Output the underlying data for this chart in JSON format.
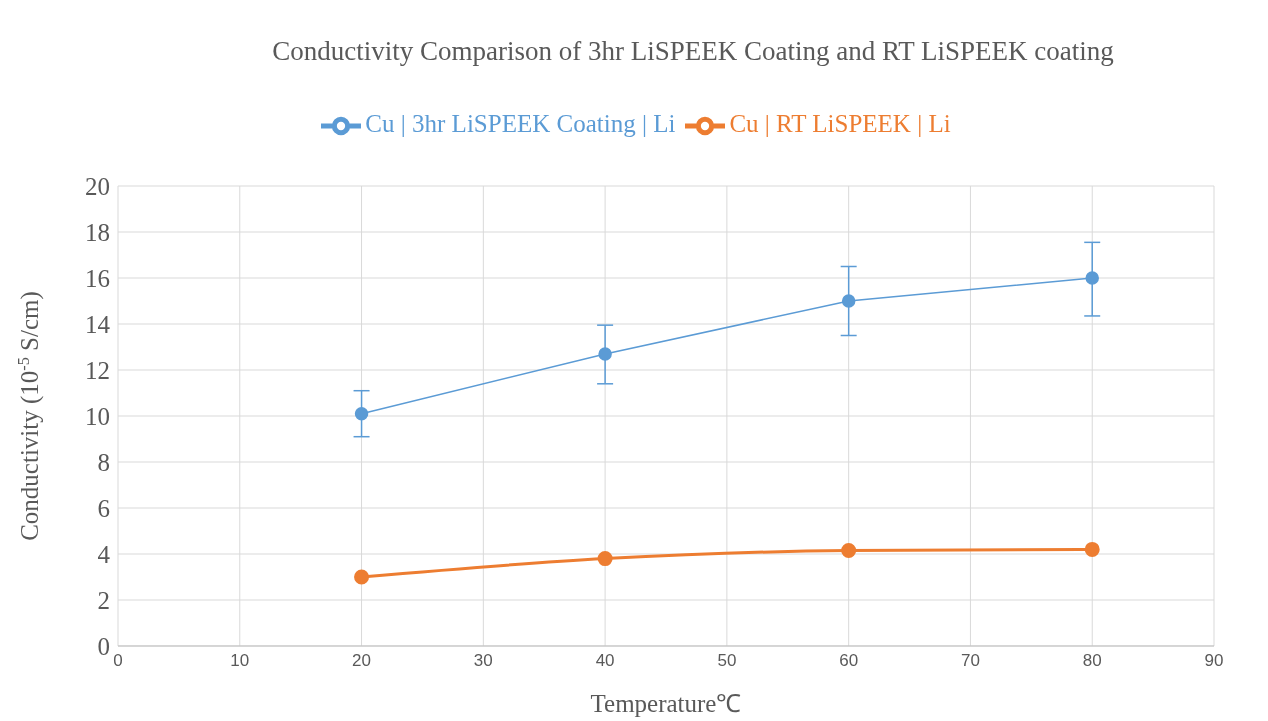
{
  "chart_data": {
    "type": "line",
    "title": "Conductivity Comparison of 3hr LiSPEEK Coating and RT LiSPEEK coating",
    "xlabel": "Temperature℃",
    "ylabel": "Conductivity (10$^{-5}$ S/cm)",
    "x": [
      20,
      40,
      60,
      80
    ],
    "series": [
      {
        "name": "Cu | 3hr LiSPEEK Coating | Li",
        "color": "#5b9bd5",
        "values": [
          10.1,
          12.7,
          15.0,
          16.0
        ],
        "errors": [
          [
            9.1,
            11.1
          ],
          [
            11.4,
            13.95
          ],
          [
            13.5,
            16.5
          ],
          [
            14.35,
            17.55
          ]
        ]
      },
      {
        "name": "Cu | RT LiSPEEK | Li",
        "color": "#ed7d31",
        "values": [
          3.0,
          3.8,
          4.15,
          4.2
        ]
      }
    ],
    "xlim": [
      0,
      90
    ],
    "xticks": [
      0,
      10,
      20,
      30,
      40,
      50,
      60,
      70,
      80,
      90
    ],
    "ylim": [
      0,
      20
    ],
    "yticks": [
      0,
      2,
      4,
      6,
      8,
      10,
      12,
      14,
      16,
      18,
      20
    ],
    "grid": true,
    "legend": "top",
    "marker": "circle"
  }
}
